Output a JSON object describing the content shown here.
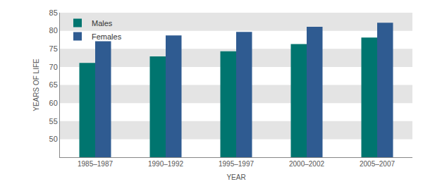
{
  "chart_data": {
    "type": "bar",
    "xlabel": "YEAR",
    "ylabel": "YEARS OF LIFE",
    "categories": [
      "1985–1987",
      "1990–1992",
      "1995–1997",
      "2000–2002",
      "2005–2007"
    ],
    "series": [
      {
        "name": "Males",
        "color": "#00756f",
        "values": [
          71.1,
          72.9,
          74.3,
          76.3,
          78.1
        ]
      },
      {
        "name": "Females",
        "color": "#2f5b91",
        "values": [
          77.1,
          78.7,
          79.7,
          81.1,
          82.2
        ]
      }
    ],
    "ylim": [
      45,
      85
    ],
    "yticks": [
      50,
      55,
      60,
      65,
      70,
      75,
      80,
      85
    ],
    "grid": true,
    "legend": "top-left"
  }
}
